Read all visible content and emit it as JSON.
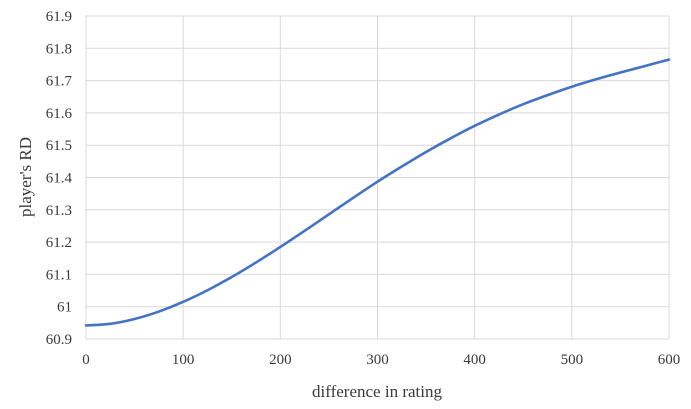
{
  "chart_data": {
    "type": "line",
    "title": "",
    "xlabel": "difference in rating",
    "ylabel": "player's RD",
    "xlim": [
      0,
      600
    ],
    "ylim": [
      60.9,
      61.9
    ],
    "x_ticks": [
      0,
      100,
      200,
      300,
      400,
      500,
      600
    ],
    "y_ticks": [
      60.9,
      61,
      61.1,
      61.2,
      61.3,
      61.4,
      61.5,
      61.6,
      61.7,
      61.8,
      61.9
    ],
    "x_tick_labels": [
      "0",
      "100",
      "200",
      "300",
      "400",
      "500",
      "600"
    ],
    "y_tick_labels": [
      "60.9",
      "61",
      "61.1",
      "61.2",
      "61.3",
      "61.4",
      "61.5",
      "61.6",
      "61.7",
      "61.8",
      "61.9"
    ],
    "grid": true,
    "legend": "none",
    "series": [
      {
        "color": "#4472c4",
        "x": [
          0,
          25,
          50,
          75,
          100,
          125,
          150,
          175,
          200,
          225,
          250,
          275,
          300,
          325,
          350,
          375,
          400,
          425,
          450,
          475,
          500,
          525,
          550,
          575,
          600
        ],
        "y": [
          60.942,
          60.947,
          60.962,
          60.985,
          61.015,
          61.051,
          61.092,
          61.137,
          61.185,
          61.235,
          61.286,
          61.337,
          61.387,
          61.434,
          61.479,
          61.521,
          61.56,
          61.595,
          61.627,
          61.655,
          61.681,
          61.704,
          61.725,
          61.745,
          61.765
        ]
      }
    ]
  }
}
